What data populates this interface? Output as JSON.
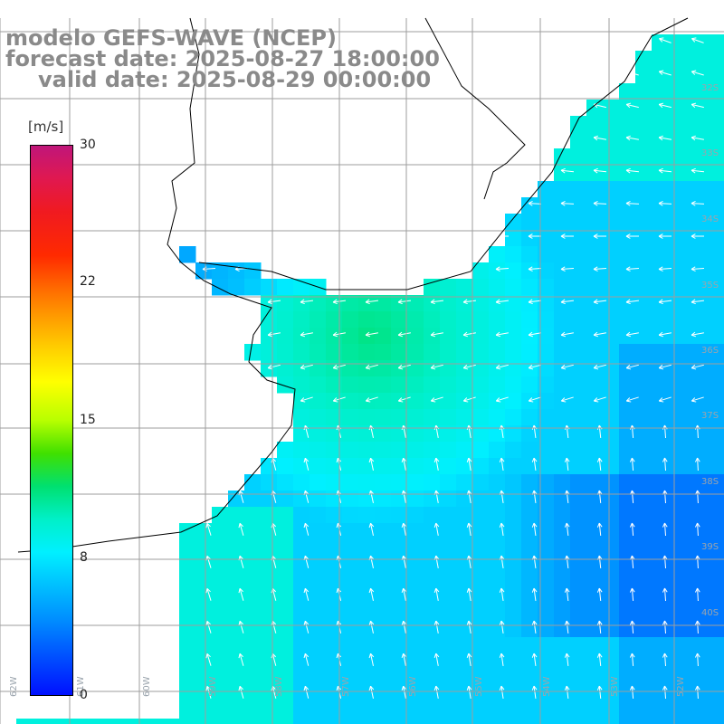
{
  "header": {
    "line1": "modelo GEFS-WAVE (NCEP)",
    "line2": "forecast date: 2025-08-27 18:00:00",
    "line3": "valid date: 2025-08-29 00:00:00"
  },
  "colorbar": {
    "unit": "[m/s]",
    "ticks": [
      "30",
      "22",
      "15",
      "8",
      "0"
    ],
    "stops": [
      "#c0167a",
      "#f01a20",
      "#ff9a00",
      "#ffff00",
      "#40e000",
      "#00f0c8",
      "#00f0ff",
      "#0090ff",
      "#0010ff"
    ]
  },
  "map": {
    "land_color": "#ffffff",
    "grid_color": "#9e9e9e",
    "arrow_color": "#ffffff",
    "coast_color": "#000000",
    "lat_labels": [
      "32S",
      "33S",
      "34S",
      "35S",
      "36S",
      "37S",
      "38S",
      "39S",
      "40S"
    ],
    "lon_labels": [
      "62W",
      "61W",
      "60W",
      "59W",
      "58W",
      "57W",
      "56W",
      "55W",
      "54W",
      "53W",
      "52W"
    ],
    "wind_ms": {
      "nearshore_north": 8,
      "rio_de_la_plata": 11,
      "offshore_south": 7,
      "southeast": 5
    }
  }
}
